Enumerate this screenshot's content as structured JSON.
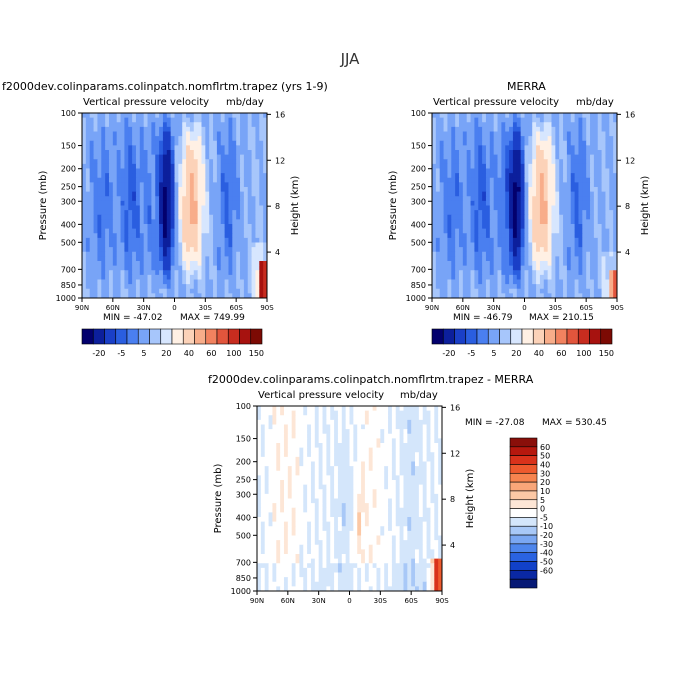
{
  "figure_title": "JJA",
  "chart_data": [
    {
      "type": "heatmap",
      "title": "f2000dev.colinparams.colinpatch.nomflrtm.trapez (yrs 1-9)",
      "subtitle": "Vertical pressure velocity",
      "units": "mb/day",
      "xlabel": "",
      "ylabel": "Pressure (mb)",
      "y2label": "Height (km)",
      "x_ticks": [
        "90N",
        "60N",
        "30N",
        "0",
        "30S",
        "60S",
        "90S"
      ],
      "y_ticks": [
        "100",
        "150",
        "200",
        "250",
        "300",
        "400",
        "500",
        "700",
        "850",
        "1000"
      ],
      "y2_ticks": [
        "16",
        "12",
        "8",
        "4"
      ],
      "xlim": [
        90,
        -90
      ],
      "ylim": [
        100,
        1000
      ],
      "y_scale": "log",
      "min_label": "MIN = -47.02",
      "max_label": "MAX = 749.99",
      "colorbar_labels": [
        "-20",
        "-5",
        "5",
        "20",
        "40",
        "60",
        "100",
        "150"
      ],
      "colorbar_colors": [
        "#03006d",
        "#0c1f9c",
        "#1a3fc7",
        "#2a5ee0",
        "#4a7ff0",
        "#78a4f7",
        "#a7c6fb",
        "#d7e6fe",
        "#fff0e4",
        "#fcd2b8",
        "#f8ad8a",
        "#f2825f",
        "#e2553c",
        "#c72c1f",
        "#a7120f",
        "#7c0a04"
      ],
      "tick_count": 7
    },
    {
      "type": "heatmap",
      "title": "MERRA",
      "subtitle": "Vertical pressure velocity",
      "units": "mb/day",
      "xlabel": "",
      "ylabel": "Pressure (mb)",
      "y2label": "Height (km)",
      "x_ticks": [
        "90N",
        "60N",
        "30N",
        "0",
        "30S",
        "60S",
        "90S"
      ],
      "y_ticks": [
        "100",
        "150",
        "200",
        "250",
        "300",
        "400",
        "500",
        "700",
        "850",
        "1000"
      ],
      "y2_ticks": [
        "16",
        "12",
        "8",
        "4"
      ],
      "xlim": [
        90,
        -90
      ],
      "ylim": [
        100,
        1000
      ],
      "y_scale": "log",
      "min_label": "MIN = -46.79",
      "max_label": "MAX = 210.15",
      "colorbar_labels": [
        "-20",
        "-5",
        "5",
        "20",
        "40",
        "60",
        "100",
        "150"
      ]
    },
    {
      "type": "heatmap",
      "title": "f2000dev.colinparams.colinpatch.nomflrtm.trapez - MERRA",
      "subtitle": "Vertical pressure velocity",
      "units": "mb/day",
      "xlabel": "",
      "ylabel": "Pressure (mb)",
      "y2label": "Height (km)",
      "x_ticks": [
        "90N",
        "60N",
        "30N",
        "0",
        "30S",
        "60S",
        "90S"
      ],
      "y_ticks": [
        "100",
        "150",
        "200",
        "250",
        "300",
        "400",
        "500",
        "700",
        "850",
        "1000"
      ],
      "y2_ticks": [
        "16",
        "12",
        "8",
        "4"
      ],
      "xlim": [
        90,
        -90
      ],
      "ylim": [
        100,
        1000
      ],
      "y_scale": "log",
      "min_label": "MIN = -27.08",
      "max_label": "MAX = 530.45",
      "colorbar_labels": [
        "60",
        "50",
        "40",
        "30",
        "20",
        "10",
        "5",
        "0",
        "-5",
        "-10",
        "-20",
        "-30",
        "-40",
        "-50",
        "-60"
      ],
      "colorbar_colors": [
        "#8a0f0a",
        "#b6180e",
        "#d9321b",
        "#ee5a2e",
        "#f7844f",
        "#f9a679",
        "#fcc8a5",
        "#fde6d6",
        "#ffffff",
        "#d4e6fb",
        "#a8c8f7",
        "#7aa7f2",
        "#4e86ec",
        "#2a63e1",
        "#1141c9",
        "#0a28a3",
        "#061975"
      ]
    }
  ]
}
